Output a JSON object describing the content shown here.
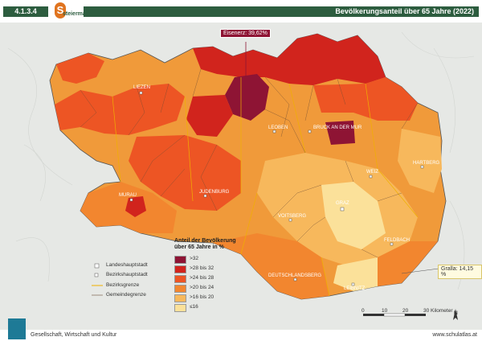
{
  "header": {
    "badge": "4.1.3.4",
    "logo_text": "steiermark",
    "title": "Bevölkerungsanteil über 65 Jahre (2022)"
  },
  "callouts": {
    "max": "Eisenerz: 39,62%",
    "min": "Gralla: 14,15 %"
  },
  "cities": {
    "liezen": "LIEZEN",
    "leoben": "LEOBEN",
    "bruck": "BRUCK AN DER MUR",
    "murau": "MURAU",
    "judenburg": "JUDENBURG",
    "weiz": "WEIZ",
    "hartberg": "HARTBERG",
    "graz": "GRAZ",
    "voitsberg": "VOITSBERG",
    "feldbach": "FELDBACH",
    "deutschlandsberg": "DEUTSCHLANDSBERG",
    "leibnitz": "LEIBNITZ"
  },
  "legend": {
    "title_1": "Anteil der Bevölkerung",
    "title_2": "über 65 Jahre in %",
    "classes": [
      {
        "label": ">32",
        "color": "#8e1434"
      },
      {
        "label": ">28 bis 32",
        "color": "#d1241d"
      },
      {
        "label": ">24 bis 28",
        "color": "#ed5524"
      },
      {
        "label": ">20 bis 24",
        "color": "#f2862f"
      },
      {
        "label": ">16 bis 20",
        "color": "#f7b85c"
      },
      {
        "label": "≤16",
        "color": "#fbe19a"
      }
    ],
    "symbols": {
      "capital": "Landeshauptstadt",
      "district_capital": "Bezirkshauptstadt",
      "district_border": "Bezirksgrenze",
      "municipality_border": "Gemeindegrenze"
    }
  },
  "scale": {
    "ticks": [
      "0",
      "10",
      "20",
      "30 Kilometer"
    ],
    "north": "N"
  },
  "footer": {
    "left": "Gesellschaft, Wirtschaft und Kultur",
    "right": "www.schulatlas.at"
  },
  "colors": {
    "brand_green": "#2d5d3f",
    "max_class": "#8e1434",
    "min_class": "#fbe19a"
  }
}
